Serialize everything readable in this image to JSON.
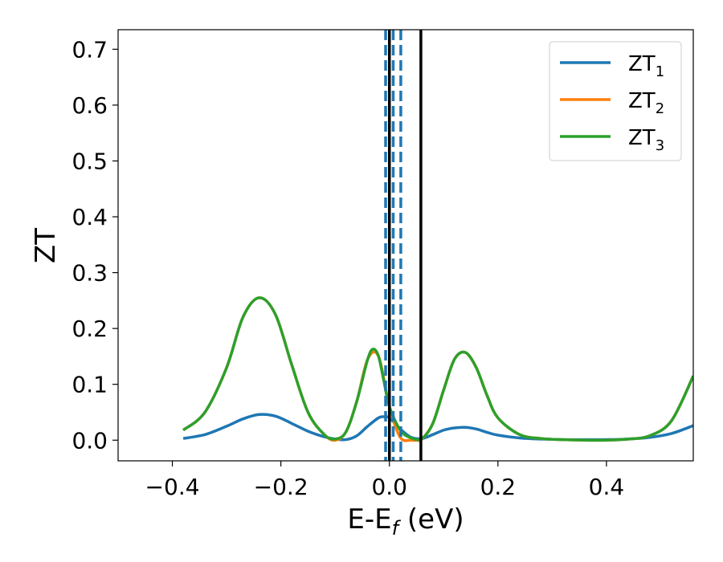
{
  "chart_data": {
    "type": "line",
    "title": "",
    "xlabel": "E-E",
    "xlabel_sub": "f",
    "xlabel_unit": " (eV)",
    "ylabel": "ZT",
    "xlim": [
      -0.5,
      0.56
    ],
    "ylim": [
      -0.037,
      0.735
    ],
    "grid": false,
    "legend": "top-right",
    "xticks": [
      -0.4,
      -0.2,
      0.0,
      0.2,
      0.4
    ],
    "xtick_labels": [
      "−0.4",
      "−0.2",
      "0.0",
      "0.2",
      "0.4"
    ],
    "yticks": [
      0.0,
      0.1,
      0.2,
      0.3,
      0.4,
      0.5,
      0.6,
      0.7
    ],
    "ytick_labels": [
      "0.0",
      "0.1",
      "0.2",
      "0.3",
      "0.4",
      "0.5",
      "0.6",
      "0.7"
    ],
    "vlines": [
      {
        "x": 0.0,
        "style": "solid",
        "color": "#000000"
      },
      {
        "x": 0.058,
        "style": "solid",
        "color": "#000000"
      },
      {
        "x": -0.007,
        "style": "dashed",
        "color": "#1f77b4"
      },
      {
        "x": 0.007,
        "style": "dashed",
        "color": "#1f77b4"
      },
      {
        "x": 0.021,
        "style": "dashed",
        "color": "#1f77b4"
      }
    ],
    "series": [
      {
        "name": "ZT",
        "name_sub": "1",
        "color": "#1f77b4",
        "x": [
          -0.38,
          -0.34,
          -0.3,
          -0.27,
          -0.24,
          -0.21,
          -0.18,
          -0.15,
          -0.12,
          -0.1,
          -0.08,
          -0.06,
          -0.04,
          -0.02,
          -0.01,
          0.0,
          0.02,
          0.04,
          0.06,
          0.08,
          0.1,
          0.12,
          0.14,
          0.16,
          0.18,
          0.2,
          0.24,
          0.28,
          0.32,
          0.36,
          0.4,
          0.44,
          0.48,
          0.52,
          0.56
        ],
        "y": [
          0.003,
          0.01,
          0.025,
          0.038,
          0.046,
          0.043,
          0.03,
          0.016,
          0.006,
          0.002,
          0.001,
          0.008,
          0.025,
          0.04,
          0.042,
          0.04,
          0.02,
          0.005,
          0.003,
          0.01,
          0.018,
          0.022,
          0.023,
          0.02,
          0.014,
          0.009,
          0.004,
          0.002,
          0.001,
          0.001,
          0.001,
          0.002,
          0.005,
          0.012,
          0.026
        ]
      },
      {
        "name": "ZT",
        "name_sub": "2",
        "color": "#ff7f0e",
        "x": [
          -0.38,
          -0.34,
          -0.3,
          -0.27,
          -0.24,
          -0.21,
          -0.18,
          -0.15,
          -0.12,
          -0.1,
          -0.08,
          -0.06,
          -0.04,
          -0.02,
          0.0,
          0.02,
          0.04,
          0.05,
          0.06,
          0.08,
          0.1,
          0.12,
          0.14,
          0.16,
          0.18,
          0.2,
          0.24,
          0.28,
          0.32,
          0.36,
          0.4,
          0.44,
          0.48,
          0.52,
          0.56
        ],
        "y": [
          0.018,
          0.05,
          0.13,
          0.22,
          0.255,
          0.225,
          0.135,
          0.05,
          0.01,
          0.0,
          0.015,
          0.07,
          0.145,
          0.15,
          0.06,
          0.005,
          0.0,
          0.0,
          0.002,
          0.03,
          0.09,
          0.145,
          0.157,
          0.13,
          0.08,
          0.04,
          0.01,
          0.003,
          0.001,
          0.0,
          0.0,
          0.002,
          0.008,
          0.035,
          0.115
        ]
      },
      {
        "name": "ZT",
        "name_sub": "3",
        "color": "#2ca02c",
        "x": [
          -0.38,
          -0.34,
          -0.3,
          -0.27,
          -0.24,
          -0.21,
          -0.18,
          -0.15,
          -0.12,
          -0.1,
          -0.08,
          -0.06,
          -0.04,
          -0.03,
          -0.02,
          -0.01,
          0.0,
          0.02,
          0.04,
          0.06,
          0.08,
          0.1,
          0.12,
          0.14,
          0.16,
          0.18,
          0.2,
          0.24,
          0.28,
          0.32,
          0.36,
          0.4,
          0.44,
          0.48,
          0.52,
          0.56
        ],
        "y": [
          0.018,
          0.05,
          0.13,
          0.22,
          0.255,
          0.225,
          0.135,
          0.05,
          0.01,
          0.002,
          0.015,
          0.07,
          0.145,
          0.163,
          0.15,
          0.105,
          0.06,
          0.018,
          0.004,
          0.003,
          0.03,
          0.09,
          0.145,
          0.157,
          0.13,
          0.08,
          0.04,
          0.01,
          0.003,
          0.001,
          0.0,
          0.0,
          0.002,
          0.008,
          0.035,
          0.115
        ]
      }
    ]
  }
}
